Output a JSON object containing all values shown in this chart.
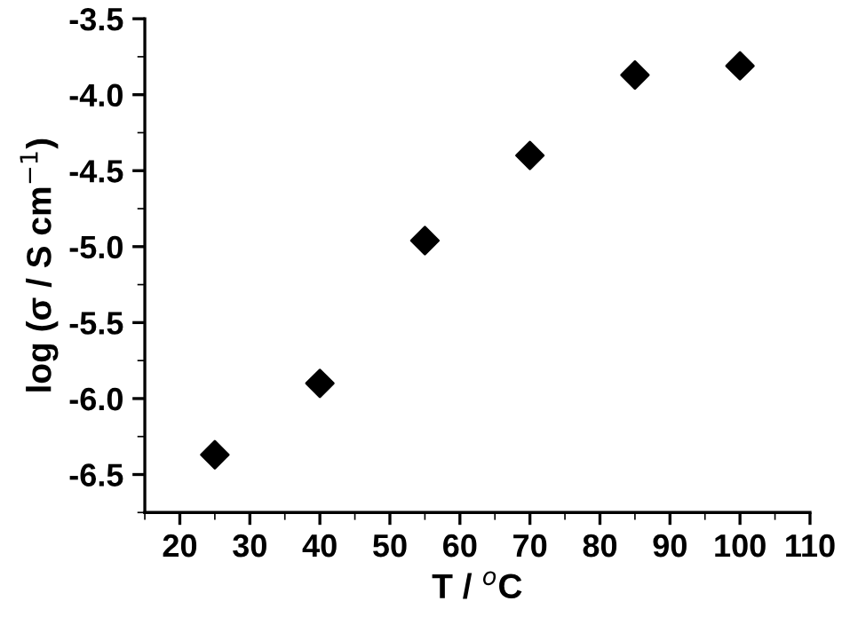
{
  "chart_data": {
    "type": "scatter",
    "xlabel": "T / $^{o}$C",
    "ylabel": "log (σ / S cm$^{−1}$)",
    "x": [
      25,
      40,
      55,
      70,
      85,
      100
    ],
    "series": [
      {
        "color": "#000000",
        "values": [
          -6.37,
          -5.9,
          -4.96,
          -4.4,
          -3.87,
          -3.81
        ]
      }
    ],
    "marker": "diamond",
    "grid": false,
    "legend": false,
    "xlim": [
      15,
      110
    ],
    "xticks": [
      20,
      30,
      40,
      50,
      60,
      70,
      80,
      90,
      100,
      110
    ],
    "ylim": [
      -6.75,
      -3.5
    ],
    "yticks": [
      -6.5,
      {
        "value": -6,
        "label": "-6.0"
      },
      -5.5,
      {
        "value": -5,
        "label": "-5.0"
      },
      -4.5,
      {
        "value": -4,
        "label": "-4.0"
      },
      -3.5
    ]
  }
}
